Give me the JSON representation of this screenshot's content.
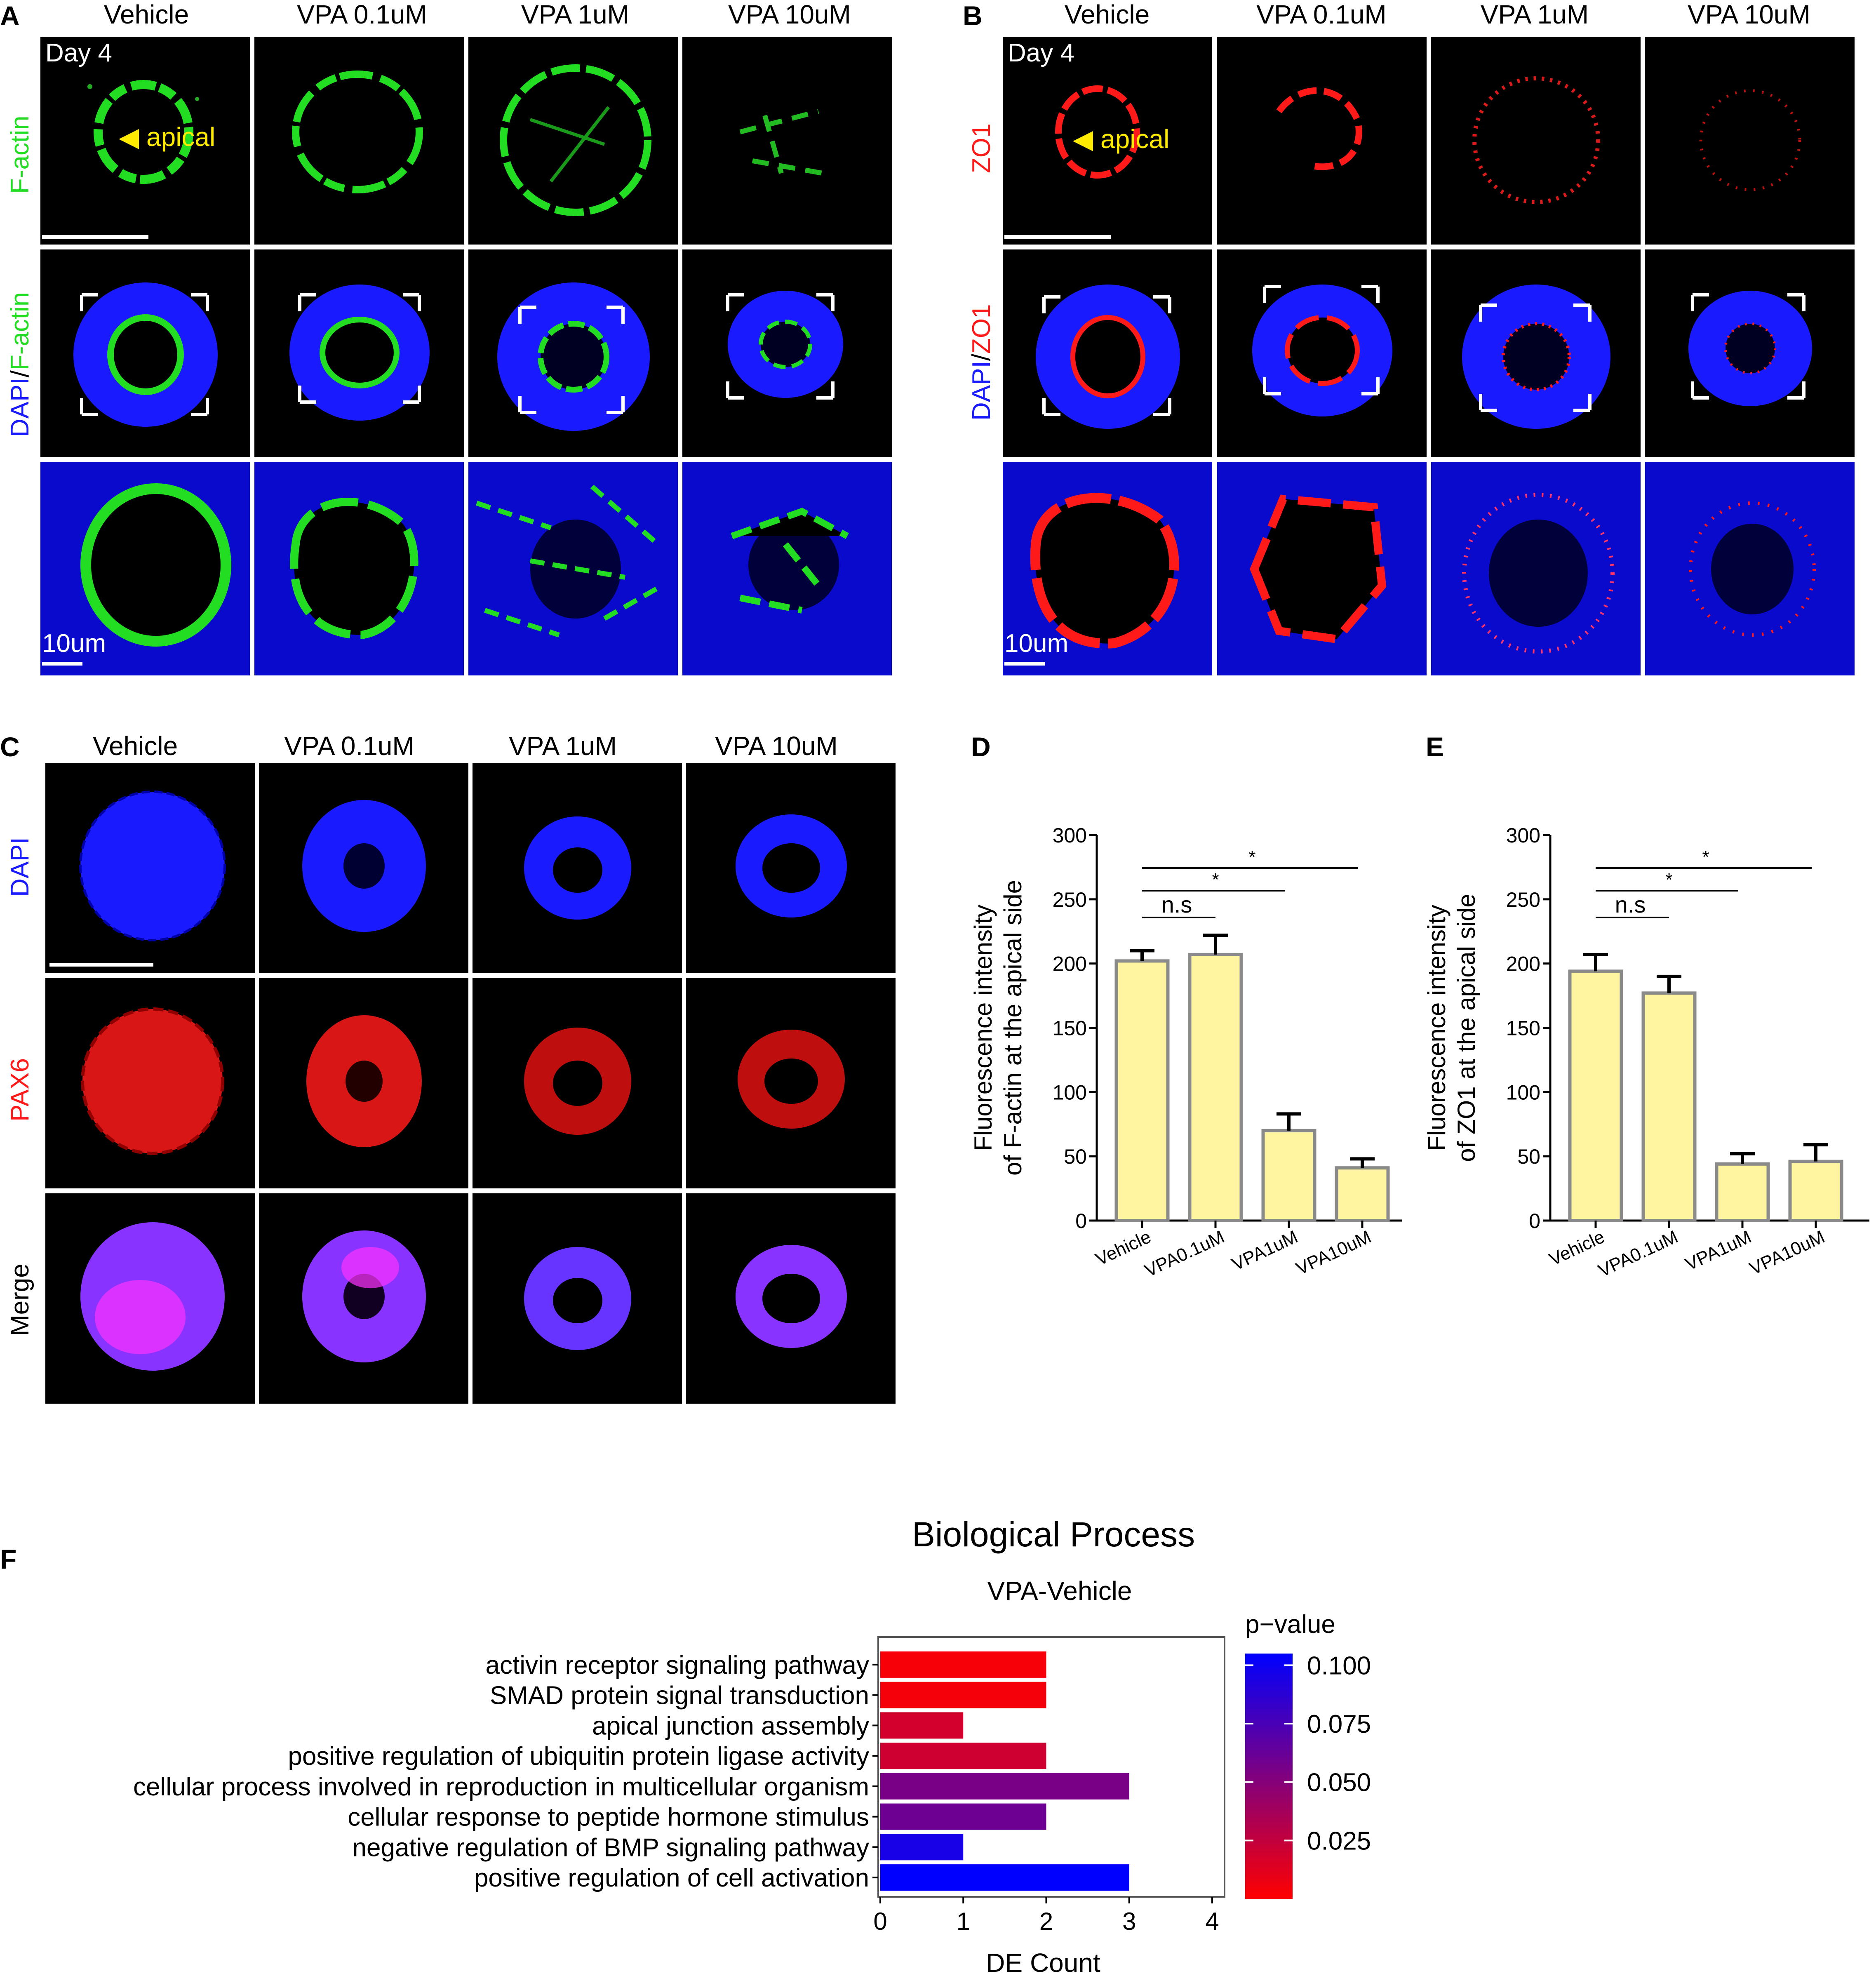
{
  "panel_letters": {
    "A": "A",
    "B": "B",
    "C": "C",
    "D": "D",
    "E": "E",
    "F": "F"
  },
  "conditions": [
    "Vehicle",
    "VPA 0.1uM",
    "VPA 1uM",
    "VPA 10uM"
  ],
  "panel_a": {
    "day": "Day 4",
    "row1_label": "F-actin",
    "row2_label": {
      "dapi": "DAPI",
      "sep": "/",
      "marker": "F-actin"
    },
    "apical": "apical",
    "scale": "10um",
    "colors": {
      "marker": "#22dd22",
      "nuclei": "#1a1aff"
    }
  },
  "panel_b": {
    "day": "Day 4",
    "row1_label": "ZO1",
    "row2_label": {
      "dapi": "DAPI",
      "sep": "/",
      "marker": "ZO1"
    },
    "apical": "apical",
    "scale": "10um",
    "colors": {
      "marker": "#ff1a1a",
      "nuclei": "#1a1aff"
    }
  },
  "panel_c": {
    "rows": [
      "DAPI",
      "PAX6",
      "Merge"
    ],
    "colors": {
      "dapi": "#1a1aff",
      "pax6": "#ff1a1a",
      "merge": "#ff33ff"
    }
  },
  "chart_data": [
    {
      "id": "D",
      "type": "bar",
      "categories": [
        "Vehicle",
        "VPA0.1uM",
        "VPA1uM",
        "VPA10uM"
      ],
      "values": [
        202,
        207,
        70,
        41
      ],
      "errors": [
        8,
        15,
        13,
        7
      ],
      "ylabel_line1": "Fluorescence intensity",
      "ylabel_line2": "of F-actin at the apical side",
      "ylim": [
        0,
        300
      ],
      "yticks": [
        0,
        50,
        100,
        150,
        200,
        250,
        300
      ],
      "bar_color": "#fff5a0",
      "annotations": [
        {
          "from": "Vehicle",
          "to": "VPA0.1uM",
          "text": "n.s"
        },
        {
          "from": "Vehicle",
          "to": "VPA1uM",
          "text": "*"
        },
        {
          "from": "Vehicle",
          "to": "VPA10uM",
          "text": "*"
        }
      ]
    },
    {
      "id": "E",
      "type": "bar",
      "categories": [
        "Vehicle",
        "VPA0.1uM",
        "VPA1uM",
        "VPA10uM"
      ],
      "values": [
        194,
        177,
        44,
        46
      ],
      "errors": [
        13,
        13,
        8,
        13
      ],
      "ylabel_line1": "Fluorescence intensity",
      "ylabel_line2": "of ZO1 at the apical side",
      "ylim": [
        0,
        300
      ],
      "yticks": [
        0,
        50,
        100,
        150,
        200,
        250,
        300
      ],
      "bar_color": "#fff5a0",
      "annotations": [
        {
          "from": "Vehicle",
          "to": "VPA0.1uM",
          "text": "n.s"
        },
        {
          "from": "Vehicle",
          "to": "VPA1uM",
          "text": "*"
        },
        {
          "from": "Vehicle",
          "to": "VPA10uM",
          "text": "*"
        }
      ]
    },
    {
      "id": "F",
      "type": "bar",
      "orientation": "horizontal",
      "title": "Biological Process",
      "subtitle": "VPA-Vehicle",
      "xlabel": "DE Count",
      "xlim": [
        0,
        4
      ],
      "xticks": [
        0,
        1,
        2,
        3,
        4
      ],
      "categories": [
        "activin receptor signaling pathway",
        "SMAD protein signal transduction",
        "apical junction assembly",
        "positive regulation of ubiquitin protein ligase activity",
        "cellular process involved in reproduction in multicellular organism",
        "cellular response to peptide hormone stimulus",
        "negative regulation of BMP signaling pathway",
        "positive regulation of cell activation"
      ],
      "values": [
        2,
        2,
        1,
        2,
        3,
        2,
        1,
        3
      ],
      "pvalues": [
        0.003,
        0.004,
        0.018,
        0.02,
        0.055,
        0.06,
        0.095,
        0.105
      ],
      "legend": {
        "title": "p−value",
        "ticks": [
          "0.100",
          "0.075",
          "0.050",
          "0.025"
        ],
        "tick_values": [
          0.1,
          0.075,
          0.05,
          0.025
        ],
        "range": [
          0.0,
          0.105
        ],
        "color_low": "#ff0000",
        "color_high": "#0000ff"
      }
    }
  ]
}
